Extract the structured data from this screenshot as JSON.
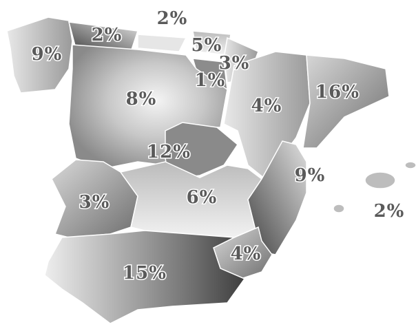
{
  "labels": [
    "9%",
    "2%",
    "2%",
    "5%",
    "3%",
    "1%",
    "8%",
    "4%",
    "16%",
    "12%",
    "3%",
    "6%",
    "9%",
    "2%",
    "4%",
    "15%"
  ]
}
